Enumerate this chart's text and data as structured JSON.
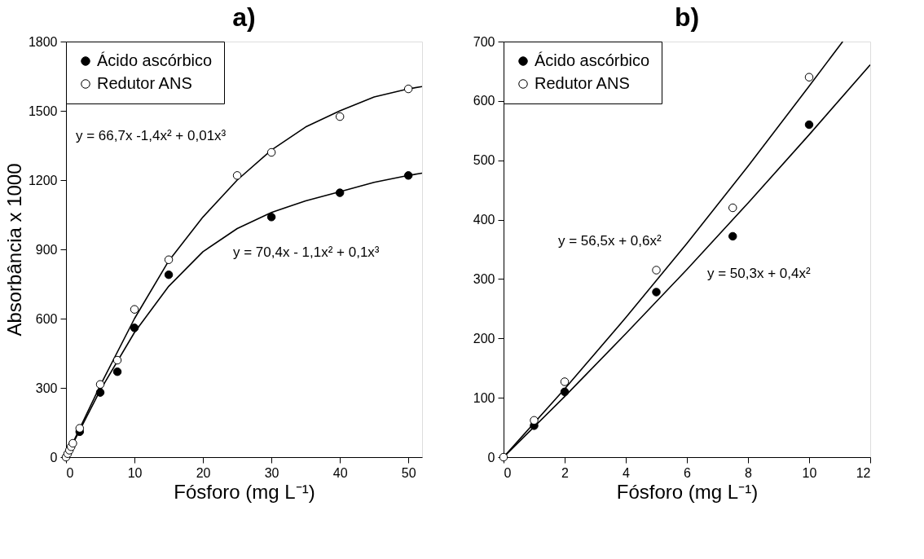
{
  "chart_data": [
    {
      "type": "scatter",
      "title": "a)",
      "xlabel": "Fósforo (mg L⁻¹)",
      "ylabel": "Absorbância x 1000",
      "xlim": [
        0,
        52
      ],
      "ylim": [
        0,
        1800
      ],
      "xticks": [
        0,
        10,
        20,
        30,
        40,
        50
      ],
      "yticks": [
        0,
        300,
        600,
        900,
        1200,
        1500,
        1800
      ],
      "legend": "top left",
      "marker": "circle",
      "series": [
        {
          "type": "line",
          "marker": "none",
          "color": "#000000",
          "x": [
            0,
            5,
            10,
            15,
            20,
            25,
            30,
            35,
            40,
            45,
            50,
            52
          ],
          "values": [
            0,
            310,
            600,
            850,
            1040,
            1200,
            1330,
            1430,
            1500,
            1560,
            1595,
            1605
          ]
        },
        {
          "type": "line",
          "marker": "none",
          "color": "#000000",
          "x": [
            0,
            5,
            10,
            15,
            20,
            25,
            30,
            35,
            40,
            45,
            50,
            52
          ],
          "values": [
            0,
            290,
            540,
            740,
            890,
            990,
            1060,
            1110,
            1150,
            1190,
            1220,
            1230
          ]
        },
        {
          "name": "Ácido ascórbico",
          "color": "#000000",
          "x": [
            2,
            5,
            7.5,
            10,
            15,
            30,
            40,
            50
          ],
          "values": [
            110,
            280,
            370,
            560,
            790,
            1040,
            1145,
            1220
          ]
        },
        {
          "name": "Redutor ANS",
          "color": "#ffffff",
          "x": [
            0,
            0.25,
            0.5,
            0.75,
            1,
            2,
            5,
            7.5,
            10,
            15,
            25,
            30,
            40,
            50
          ],
          "values": [
            0,
            15,
            30,
            45,
            60,
            125,
            315,
            420,
            640,
            855,
            1220,
            1320,
            1475,
            1595
          ]
        }
      ],
      "annotations": [
        "y = 66,7x -1,4x² + 0,01x³",
        "y = 70,4x - 1,1x² + 0,1x³"
      ]
    },
    {
      "type": "scatter",
      "title": "b)",
      "xlabel": "Fósforo (mg L⁻¹)",
      "xlim": [
        0,
        12
      ],
      "ylim": [
        0,
        700
      ],
      "xticks": [
        0,
        2,
        4,
        6,
        8,
        10,
        12
      ],
      "yticks": [
        0,
        100,
        200,
        300,
        400,
        500,
        600,
        700
      ],
      "legend": "top left",
      "marker": "circle",
      "series": [
        {
          "type": "line",
          "marker": "none",
          "color": "#000000",
          "x": [
            0,
            2,
            4,
            6,
            8,
            10,
            11.1
          ],
          "values": [
            0,
            115,
            235,
            360,
            490,
            625,
            700
          ]
        },
        {
          "type": "line",
          "marker": "none",
          "color": "#000000",
          "x": [
            0,
            2,
            4,
            6,
            8,
            10,
            12
          ],
          "values": [
            0,
            102,
            208,
            316,
            428,
            543,
            661
          ]
        },
        {
          "name": "Ácido ascórbico",
          "color": "#000000",
          "x": [
            1,
            2,
            5,
            7.5,
            10
          ],
          "values": [
            53,
            110,
            278,
            372,
            560
          ]
        },
        {
          "name": "Redutor ANS",
          "color": "#ffffff",
          "x": [
            0,
            1,
            2,
            5,
            7.5,
            10
          ],
          "values": [
            0,
            62,
            127,
            315,
            420,
            640
          ]
        }
      ],
      "annotations": [
        "y = 56,5x + 0,6x²",
        "y = 50,3x + 0,4x²"
      ]
    }
  ]
}
